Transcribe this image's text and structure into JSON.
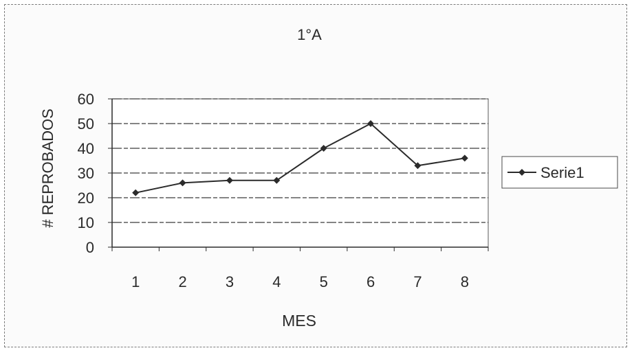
{
  "chart_data": {
    "type": "line",
    "title": "1°A",
    "xlabel": "MES",
    "ylabel": "# REPROBADOS",
    "categories": [
      "1",
      "2",
      "3",
      "4",
      "5",
      "6",
      "7",
      "8"
    ],
    "series": [
      {
        "name": "Serie1",
        "values": [
          22,
          26,
          27,
          27,
          40,
          50,
          33,
          36
        ]
      }
    ],
    "ylim": [
      0,
      60
    ],
    "yticks": [
      0,
      10,
      20,
      30,
      40,
      50,
      60
    ],
    "grid": true,
    "legend_position": "right",
    "colors": {
      "line": "#2b2b2b",
      "grid": "#3a3a3a",
      "axis": "#2b2b2b",
      "text": "#2a2a2a"
    }
  }
}
